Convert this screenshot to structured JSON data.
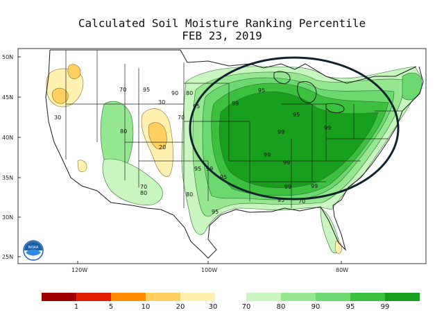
{
  "title": {
    "line1": "Calculated Soil Moisture Ranking Percentile",
    "line2": "FEB 23, 2019"
  },
  "axes": {
    "lat_labels": [
      "50N",
      "45N",
      "40N",
      "35N",
      "30N",
      "25N"
    ],
    "lon_labels": [
      "120W",
      "100W",
      "80W"
    ]
  },
  "contour_labels": [
    "95",
    "99",
    "95",
    "95",
    "99",
    "99",
    "99",
    "99",
    "95",
    "99",
    "95",
    "99",
    "99",
    "95",
    "70",
    "95",
    "80",
    "90",
    "80",
    "70",
    "95",
    "30",
    "30",
    "80",
    "20",
    "70",
    "80",
    "70"
  ],
  "legend": {
    "dry": {
      "labels": [
        "1",
        "5",
        "10",
        "20",
        "30"
      ],
      "colors": [
        "#a00000",
        "#e02000",
        "#ff8c00",
        "#ffd060",
        "#fff2b0"
      ]
    },
    "wet": {
      "labels": [
        "70",
        "80",
        "90",
        "95",
        "99"
      ],
      "colors": [
        "#c8f5c0",
        "#96e890",
        "#6cd870",
        "#3cc040",
        "#16a01e"
      ]
    }
  },
  "logo": {
    "text": "NOAA",
    "icon": "noaa-logo-icon"
  },
  "colors": {
    "land": "#ffffff",
    "outline": "#222222",
    "highlight_ellipse": "#10222e"
  }
}
